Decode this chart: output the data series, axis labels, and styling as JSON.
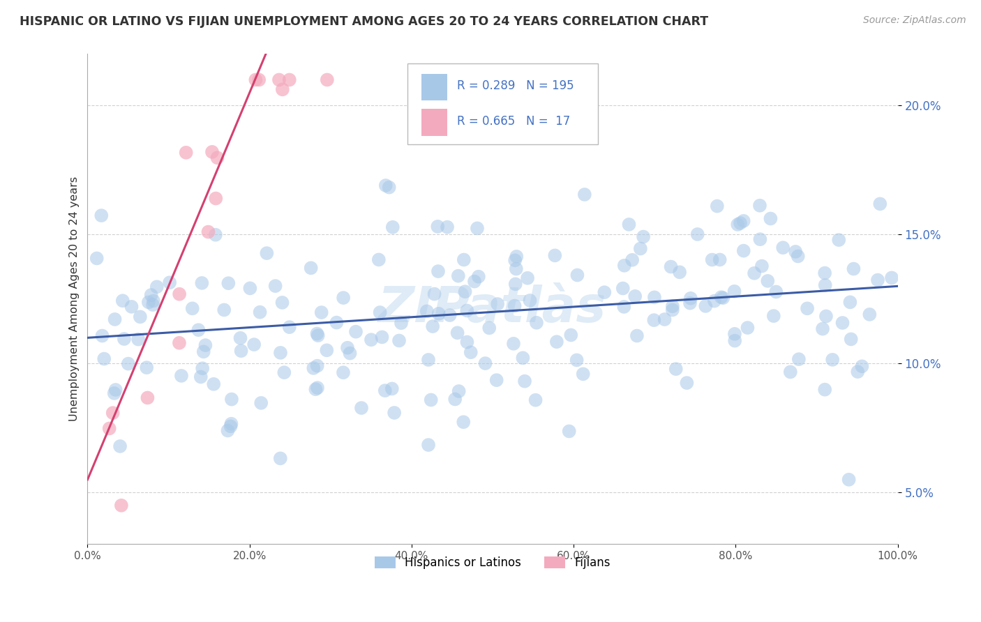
{
  "title": "HISPANIC OR LATINO VS FIJIAN UNEMPLOYMENT AMONG AGES 20 TO 24 YEARS CORRELATION CHART",
  "source": "Source: ZipAtlas.com",
  "ylabel": "Unemployment Among Ages 20 to 24 years",
  "xlim": [
    0,
    100
  ],
  "ylim": [
    3,
    22
  ],
  "xticks": [
    0,
    20,
    40,
    60,
    80,
    100
  ],
  "xtick_labels": [
    "0.0%",
    "20.0%",
    "40.0%",
    "60.0%",
    "80.0%",
    "100.0%"
  ],
  "yticks": [
    5,
    10,
    15,
    20
  ],
  "ytick_labels": [
    "5.0%",
    "10.0%",
    "15.0%",
    "20.0%"
  ],
  "R_hispanic": 0.289,
  "N_hispanic": 195,
  "R_fijian": 0.665,
  "N_fijian": 17,
  "hispanic_color": "#A8C8E8",
  "fijian_color": "#F4AABE",
  "hispanic_line_color": "#3B5BA5",
  "fijian_line_color": "#D44070",
  "legend_label_hispanic": "Hispanics or Latinos",
  "legend_label_fijian": "Fijians",
  "watermark": "ZIPatlàs",
  "background_color": "#FFFFFF",
  "grid_color": "#CCCCCC",
  "title_color": "#333333",
  "source_color": "#999999",
  "legend_R_N_color": "#4472C4",
  "hispanic_trend_x0": 0,
  "hispanic_trend_y0": 11.0,
  "hispanic_trend_x1": 100,
  "hispanic_trend_y1": 13.0,
  "fijian_trend_x0": 0,
  "fijian_trend_y0": 5.5,
  "fijian_trend_x1": 22,
  "fijian_trend_y1": 22
}
